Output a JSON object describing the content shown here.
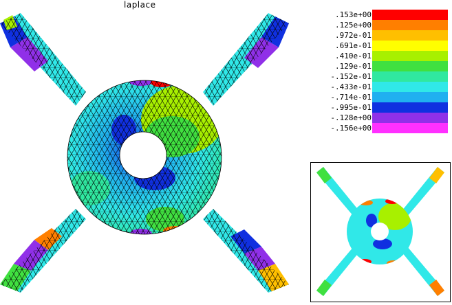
{
  "title": "laplace",
  "legend": [
    {
      "label": ".153e+00",
      "color": "#ff0000"
    },
    {
      "label": ".125e+00",
      "color": "#ff7f00"
    },
    {
      "label": ".972e-01",
      "color": "#ffbf00"
    },
    {
      "label": ".691e-01",
      "color": "#ffff00"
    },
    {
      "label": ".410e-01",
      "color": "#a8f000"
    },
    {
      "label": ".129e-01",
      "color": "#40e040"
    },
    {
      "label": "-.152e-01",
      "color": "#30e8a0"
    },
    {
      "label": "-.433e-01",
      "color": "#30e8e8"
    },
    {
      "label": "-.714e-01",
      "color": "#20b0f0"
    },
    {
      "label": "-.995e-01",
      "color": "#1030e0"
    },
    {
      "label": "-.128e+00",
      "color": "#9030e8"
    },
    {
      "label": "-.156e+00",
      "color": "#ff30ff"
    }
  ],
  "colors": {
    "mesh_line": "#000000",
    "background": "#ffffff"
  }
}
